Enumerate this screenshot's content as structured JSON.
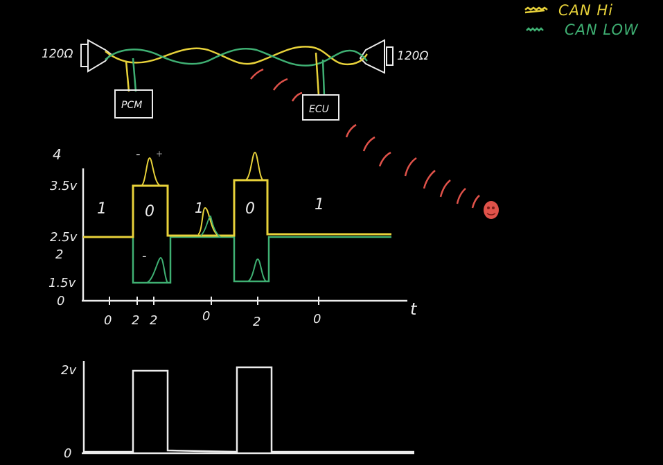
{
  "legend": [
    {
      "label": "CAN Hi",
      "color": "#e8d23a"
    },
    {
      "label": "CAN LOW",
      "color": "#3fb073"
    }
  ],
  "bus": {
    "left_resistor": "120Ω",
    "right_resistor": "120Ω",
    "nodes": [
      "PCM",
      "ECU"
    ]
  },
  "voltage_plot": {
    "y_ticks": [
      "4",
      "3.5v",
      "2.5v",
      "2",
      "1.5v",
      "0"
    ],
    "x_axis_label": "t",
    "bit_labels": [
      "1",
      "0",
      "1",
      "0",
      "1"
    ],
    "x_tick_labels": [
      "0",
      "2",
      "2",
      "0",
      "2",
      "0"
    ],
    "minus_mark": "-"
  },
  "diff_plot": {
    "y_ticks": [
      "2v",
      "0"
    ]
  },
  "colors": {
    "background": "#000000",
    "can_hi": "#e8d23a",
    "can_low": "#3fb073",
    "chalk": "#ececec",
    "interference": "#e0524a"
  },
  "icons": [
    "resistor-icon",
    "noise-source-icon"
  ]
}
